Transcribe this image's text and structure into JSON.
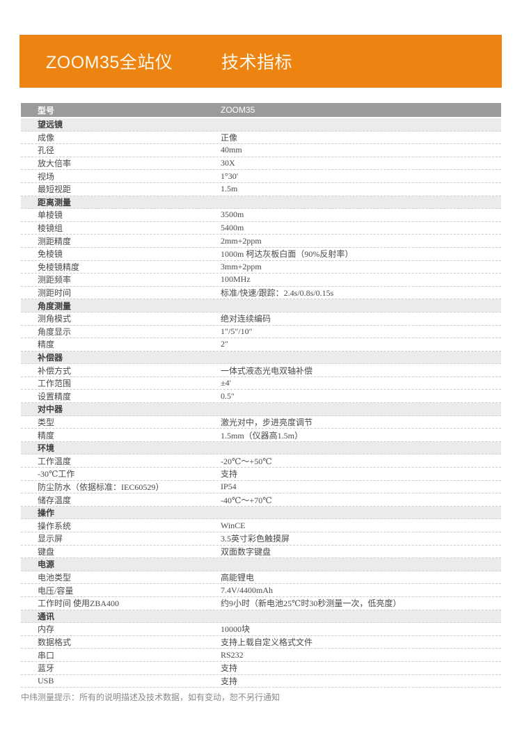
{
  "banner": {
    "product_title": "ZOOM35全站仪",
    "sheet_title": "技术指标"
  },
  "colors": {
    "accent_orange": "#ED8411",
    "table_header_bg": "#9B9B9B",
    "section_row_bg": "#EBEBEB",
    "body_text": "#4a4a4a",
    "footer_text": "#8A8A8A"
  },
  "table": {
    "header": {
      "label": "型号",
      "value": "ZOOM35"
    },
    "sections": [
      {
        "title": "望远镜",
        "rows": [
          {
            "label": "成像",
            "value": "正像"
          },
          {
            "label": "孔径",
            "value": "40mm"
          },
          {
            "label": "放大倍率",
            "value": "30X"
          },
          {
            "label": "视场",
            "value": "1°30′"
          },
          {
            "label": "最短视距",
            "value": "1.5m"
          }
        ]
      },
      {
        "title": "距离测量",
        "rows": [
          {
            "label": "单棱镜",
            "value": "3500m"
          },
          {
            "label": "棱镜组",
            "value": "5400m"
          },
          {
            "label": "测距精度",
            "value": "2mm+2ppm"
          },
          {
            "label": "免棱镜",
            "value": "1000m 柯达灰板白面（90%反射率）"
          },
          {
            "label": "免棱镜精度",
            "value": "3mm+2ppm"
          },
          {
            "label": "测距频率",
            "value": "100MHz"
          },
          {
            "label": "测距时间",
            "value": "标准/快速/跟踪：2.4s/0.8s/0.15s"
          }
        ]
      },
      {
        "title": "角度测量",
        "rows": [
          {
            "label": "测角模式",
            "value": "绝对连续编码"
          },
          {
            "label": "角度显示",
            "value": "1″/5″/10″"
          },
          {
            "label": "精度",
            "value": "2″"
          }
        ]
      },
      {
        "title": "补偿器",
        "rows": [
          {
            "label": "补偿方式",
            "value": "一体式液态光电双轴补偿"
          },
          {
            "label": "工作范围",
            "value": "±4′"
          },
          {
            "label": "设置精度",
            "value": "0.5″"
          }
        ]
      },
      {
        "title": "对中器",
        "rows": [
          {
            "label": "类型",
            "value": "激光对中，步进亮度调节"
          },
          {
            "label": "精度",
            "value": "1.5mm（仪器高1.5m）"
          }
        ]
      },
      {
        "title": "环境",
        "rows": [
          {
            "label": "工作温度",
            "value": "-20℃～+50℃"
          },
          {
            "label": "-30℃工作",
            "value": "支持"
          },
          {
            "label": "防尘防水（依据标准：IEC60529）",
            "value": "IP54"
          },
          {
            "label": "储存温度",
            "value": "-40℃～+70℃"
          }
        ]
      },
      {
        "title": "操作",
        "rows": [
          {
            "label": "操作系统",
            "value": "WinCE"
          },
          {
            "label": "显示屏",
            "value": "3.5英寸彩色触摸屏"
          },
          {
            "label": "键盘",
            "value": "双面数字键盘"
          }
        ]
      },
      {
        "title": "电源",
        "rows": [
          {
            "label": "电池类型",
            "value": "高能锂电"
          },
          {
            "label": "电压/容量",
            "value": "7.4V/4400mAh"
          },
          {
            "label": "工作时间 使用ZBA400",
            "value": "约9小时（新电池25℃时30秒测量一次，低亮度）"
          }
        ]
      },
      {
        "title": "通讯",
        "rows": [
          {
            "label": "内存",
            "value": "10000块"
          },
          {
            "label": "数据格式",
            "value": "支持上载自定义格式文件"
          },
          {
            "label": "串口",
            "value": "RS232"
          },
          {
            "label": "蓝牙",
            "value": "支持"
          },
          {
            "label": "USB",
            "value": "支持"
          }
        ]
      }
    ]
  },
  "footer": {
    "note": "中纬测量提示：所有的说明描述及技术数据，如有变动，恕不另行通知"
  }
}
